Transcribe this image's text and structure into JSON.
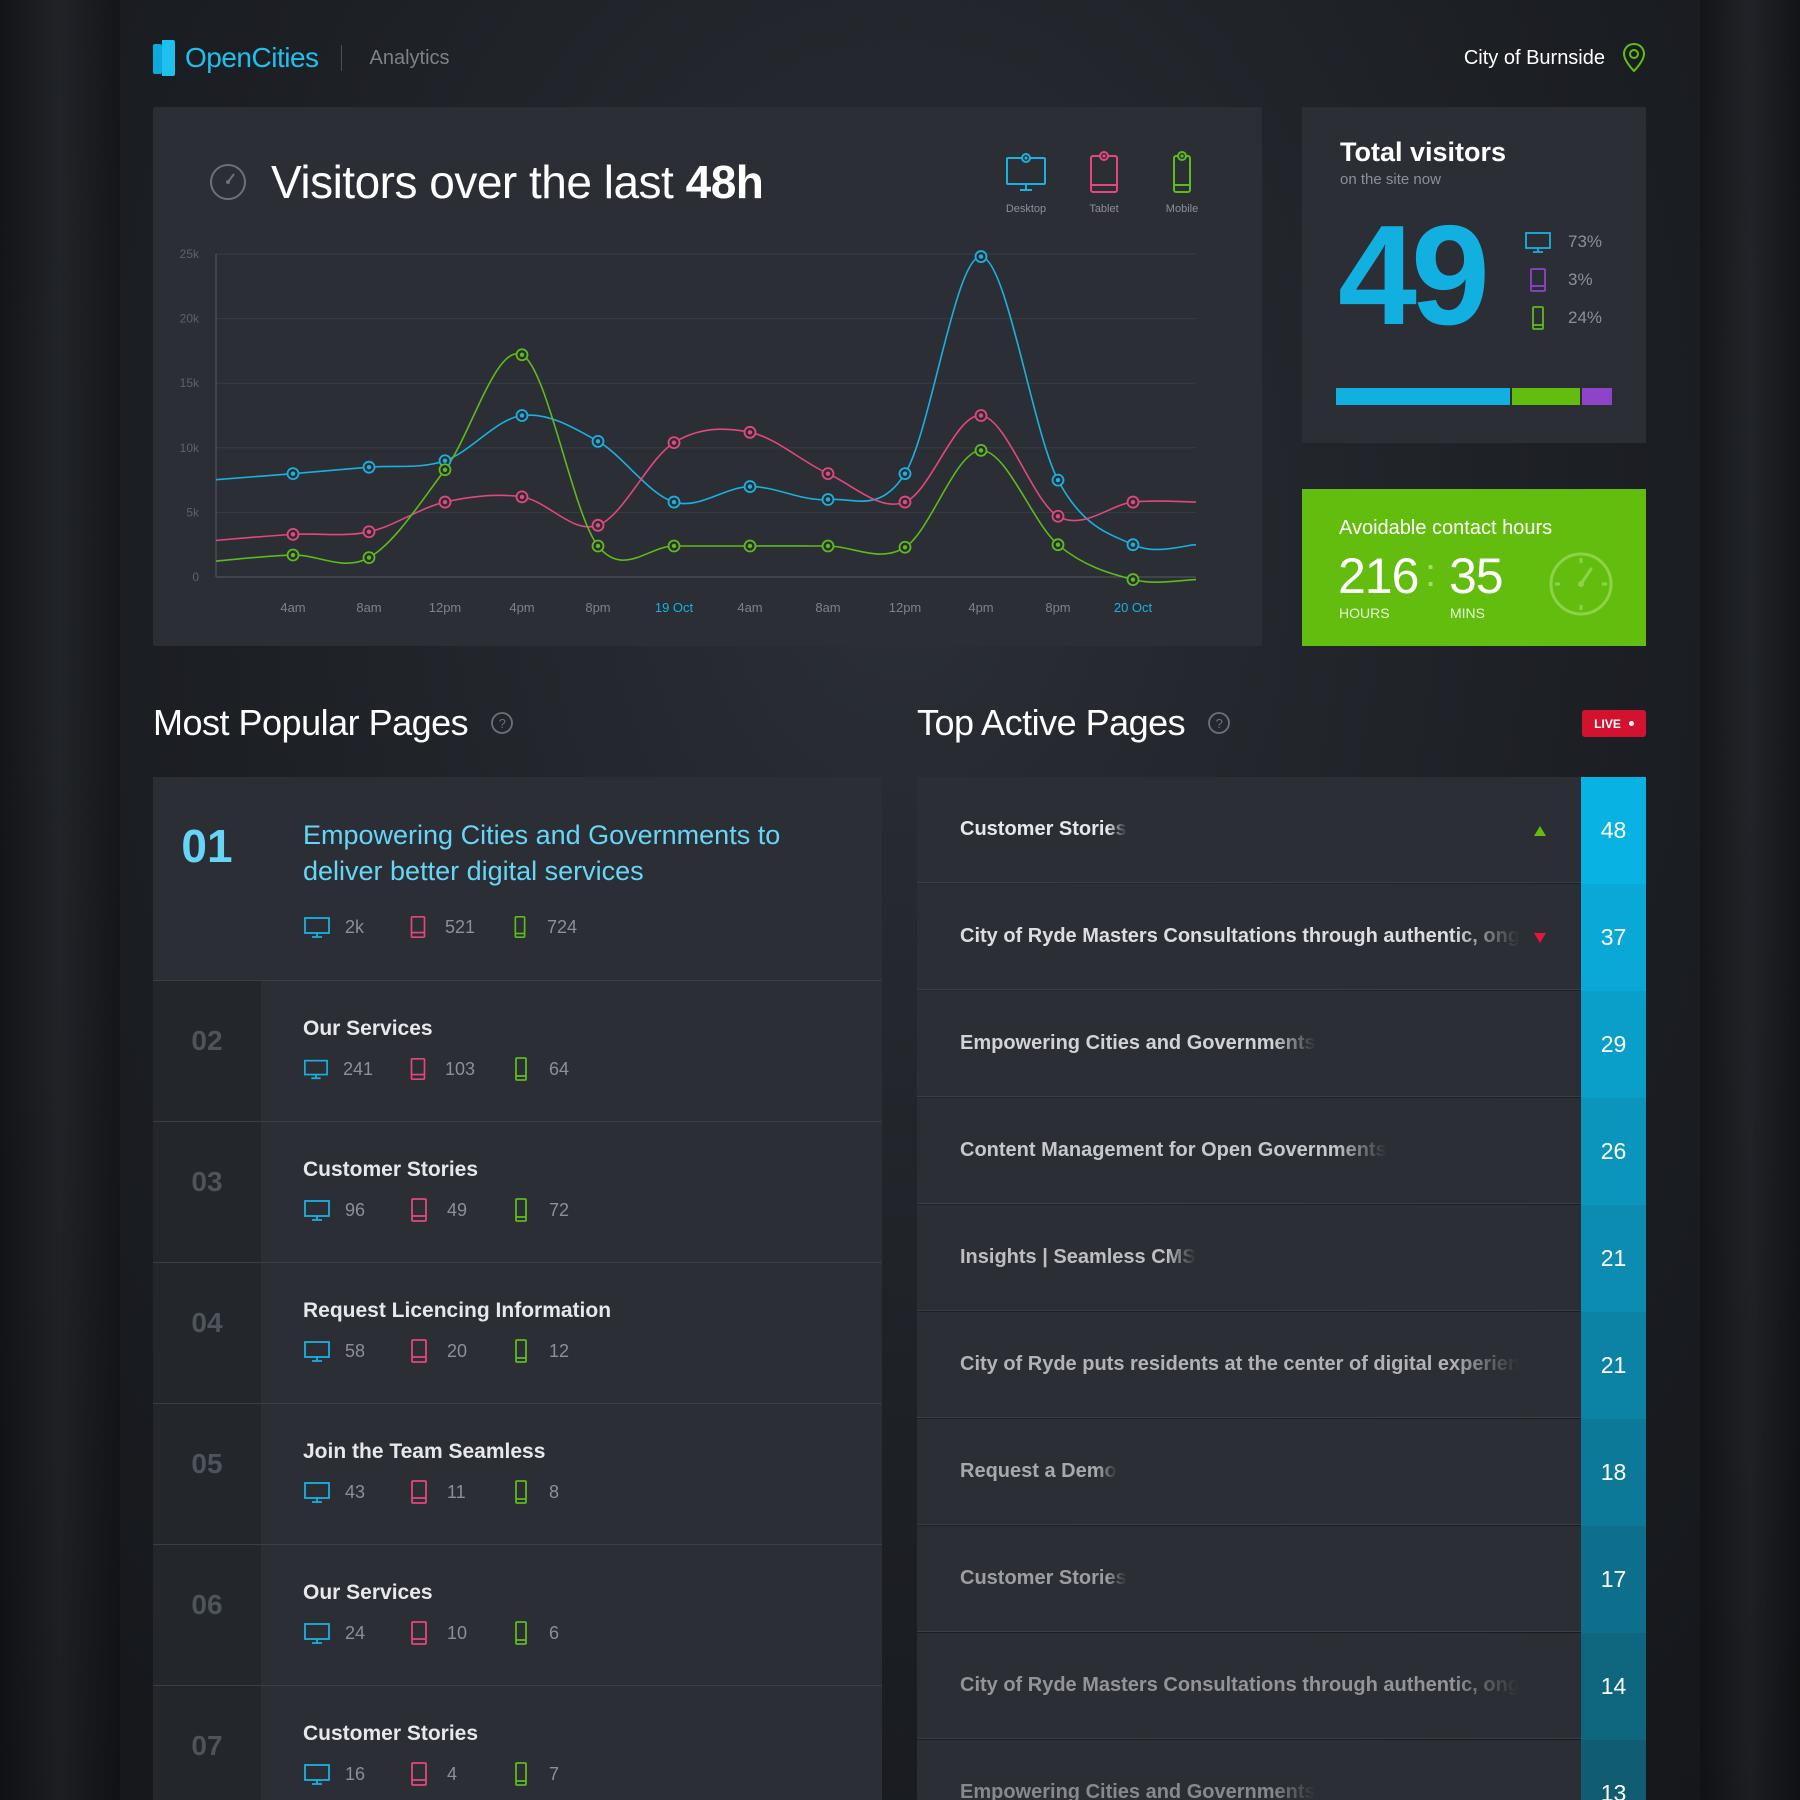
{
  "header": {
    "brand": "OpenCities",
    "section": "Analytics",
    "city": "City of Burnside"
  },
  "colors": {
    "desktop": "#1ab1df",
    "tablet": "#e2477f",
    "mobile": "#5fba1c",
    "tablet_split": "#8e44c9",
    "accent_green": "#62bd0f",
    "live_red": "#d3122f"
  },
  "visitors_chart": {
    "title_prefix": "Visitors over the last ",
    "title_bold": "48h",
    "legend": [
      {
        "label": "Desktop",
        "icon": "desktop-icon",
        "color": "#1ab1df"
      },
      {
        "label": "Tablet",
        "icon": "tablet-icon",
        "color": "#e2477f"
      },
      {
        "label": "Mobile",
        "icon": "mobile-icon",
        "color": "#5fba1c"
      }
    ]
  },
  "chart_data": {
    "type": "line",
    "title": "Visitors over the last 48h",
    "y_ticks": [
      "0",
      "5k",
      "10k",
      "15k",
      "20k",
      "25k"
    ],
    "ylim": [
      0,
      25000
    ],
    "x": [
      "4am",
      "8am",
      "12pm",
      "4pm",
      "8pm",
      "19 Oct",
      "4am",
      "8am",
      "12pm",
      "4pm",
      "8pm",
      "20 Oct"
    ],
    "x_highlight": [
      "19 Oct",
      "20 Oct"
    ],
    "grid": true,
    "series": [
      {
        "name": "Desktop",
        "color": "#1ab1df",
        "values": [
          8000,
          8500,
          9000,
          12500,
          10500,
          5800,
          7000,
          6000,
          8000,
          24800,
          7500,
          2500
        ]
      },
      {
        "name": "Tablet",
        "color": "#e2477f",
        "values": [
          3300,
          3500,
          5800,
          6200,
          4000,
          10400,
          11200,
          8000,
          5800,
          12500,
          4700,
          5800
        ]
      },
      {
        "name": "Mobile",
        "color": "#5fba1c",
        "values": [
          1700,
          1500,
          8300,
          17200,
          2400,
          2400,
          2400,
          2400,
          2300,
          9800,
          2500,
          -200
        ]
      }
    ]
  },
  "total_visitors": {
    "title": "Total visitors",
    "subtitle": "on the site now",
    "count": "49",
    "split": [
      {
        "icon": "desktop-icon",
        "value": "73%",
        "color": "#1ab1df",
        "share": 0.73
      },
      {
        "icon": "tablet-icon",
        "value": "3%",
        "color": "#8e44c9",
        "share": 0.03
      },
      {
        "icon": "mobile-icon",
        "value": "24%",
        "color": "#5fba1c",
        "share": 0.24
      }
    ],
    "bar": [
      {
        "color": "#12b0e0",
        "share": 0.64
      },
      {
        "color": "#62bd0f",
        "share": 0.25
      },
      {
        "color": "#8e44c9",
        "share": 0.11
      }
    ]
  },
  "contact_hours": {
    "title": "Avoidable contact hours",
    "hours": "216",
    "separator": ":",
    "mins": "35",
    "hours_label": "HOURS",
    "mins_label": "MINS"
  },
  "popular": {
    "title": "Most Popular Pages",
    "items": [
      {
        "rank": "01",
        "title": "Empowering Cities and Governments to deliver better digital services",
        "desktop": "2k",
        "tablet": "521",
        "mobile": "724"
      },
      {
        "rank": "02",
        "title": "Our Services",
        "desktop": "241",
        "tablet": "103",
        "mobile": "64"
      },
      {
        "rank": "03",
        "title": "Customer Stories",
        "desktop": "96",
        "tablet": "49",
        "mobile": "72"
      },
      {
        "rank": "04",
        "title": "Request Licencing Information",
        "desktop": "58",
        "tablet": "20",
        "mobile": "12"
      },
      {
        "rank": "05",
        "title": "Join the Team Seamless",
        "desktop": "43",
        "tablet": "11",
        "mobile": "8"
      },
      {
        "rank": "06",
        "title": "Our Services",
        "desktop": "24",
        "tablet": "10",
        "mobile": "6"
      },
      {
        "rank": "07",
        "title": "Customer Stories",
        "desktop": "16",
        "tablet": "4",
        "mobile": "7"
      }
    ]
  },
  "active": {
    "title": "Top Active Pages",
    "live_label": "LIVE",
    "items": [
      {
        "title": "Customer Stories",
        "count": "48",
        "trend": "up"
      },
      {
        "title": "City of Ryde Masters Consultations through authentic, ongoing engagement",
        "count": "37",
        "trend": "down"
      },
      {
        "title": "Empowering Cities and Governments",
        "count": "29",
        "trend": ""
      },
      {
        "title": "Content Management for Open Governments",
        "count": "26",
        "trend": ""
      },
      {
        "title": "Insights | Seamless CMS",
        "count": "21",
        "trend": ""
      },
      {
        "title": "City of Ryde puts residents at the center of digital experience",
        "count": "21",
        "trend": ""
      },
      {
        "title": "Request a Demo",
        "count": "18",
        "trend": ""
      },
      {
        "title": "Customer Stories",
        "count": "17",
        "trend": ""
      },
      {
        "title": "City of Ryde Masters Consultations through authentic, ongoing engagement",
        "count": "14",
        "trend": ""
      },
      {
        "title": "Empowering Cities and Governments",
        "count": "13",
        "trend": ""
      }
    ]
  }
}
